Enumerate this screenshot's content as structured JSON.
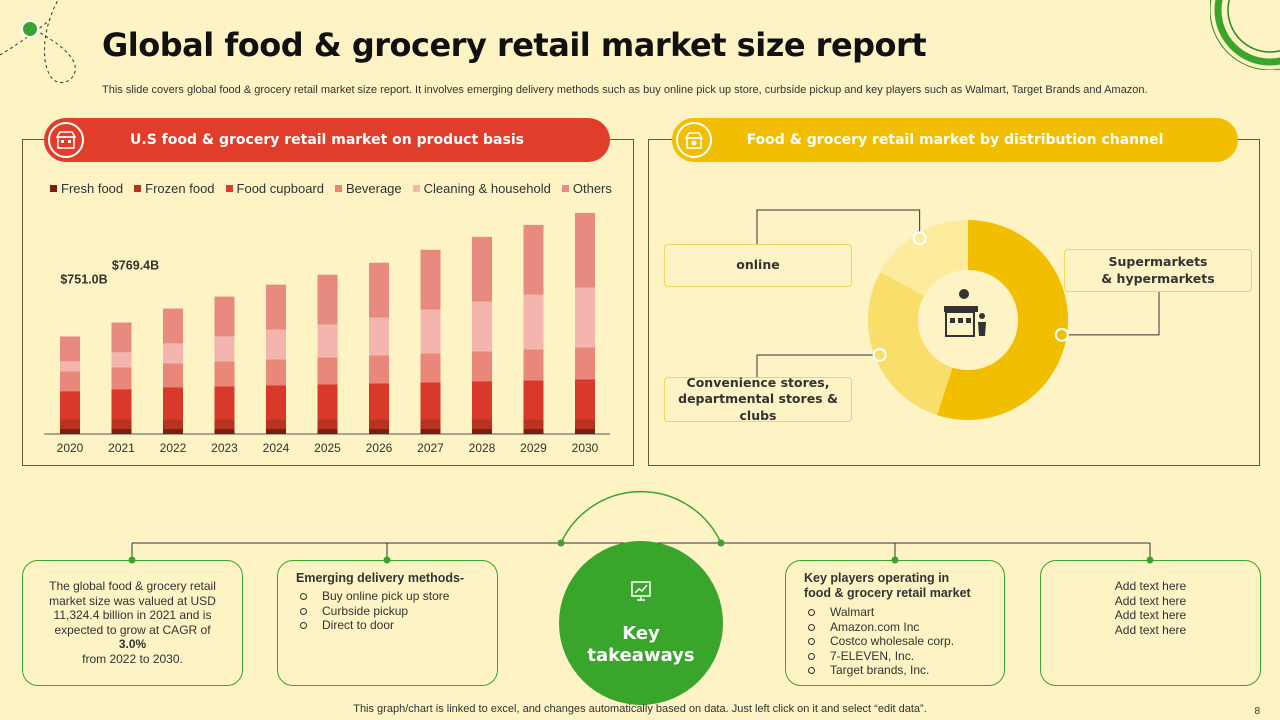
{
  "title": "Global food & grocery retail market size report",
  "subtitle": "This slide covers global food & grocery retail market size report. It involves emerging delivery methods such as buy online pick up store, curbside pickup and key players such as Walmart, Target Brands and Amazon.",
  "left_panel": {
    "header": "U.S food & grocery retail market on product basis"
  },
  "right_panel": {
    "header": "Food & grocery retail market by distribution channel"
  },
  "colors": {
    "red": "#E03E2A",
    "yellow": "#F2BE00",
    "green": "#3AA52B",
    "background": "#FDF3C4"
  },
  "chart_data": [
    {
      "type": "bar",
      "stacked": true,
      "categories": [
        "2020",
        "2021",
        "2022",
        "2023",
        "2024",
        "2025",
        "2026",
        "2027",
        "2028",
        "2029",
        "2030"
      ],
      "series": [
        {
          "name": "Fresh food",
          "color": "#7A1E10",
          "values": [
            5,
            5,
            5,
            5,
            5,
            5,
            5,
            5,
            5,
            5,
            5
          ]
        },
        {
          "name": "Frozen food",
          "color": "#B83220",
          "values": [
            10,
            10,
            10,
            10,
            10,
            10,
            10,
            10,
            10,
            10,
            10
          ]
        },
        {
          "name": "Food cupboard",
          "color": "#D9392A",
          "values": [
            28,
            30,
            32,
            33,
            34,
            35,
            36,
            37,
            38,
            39,
            40
          ]
        },
        {
          "name": "Beverage",
          "color": "#E9877A",
          "values": [
            20,
            22,
            24,
            25,
            26,
            27,
            28,
            29,
            30,
            31,
            32
          ]
        },
        {
          "name": "Cleaning & household",
          "color": "#F4B5AE",
          "values": [
            10,
            15,
            20,
            25,
            30,
            33,
            38,
            44,
            50,
            55,
            60
          ]
        },
        {
          "name": "Others",
          "color": "#E98A80",
          "values": [
            25,
            30,
            35,
            40,
            45,
            50,
            55,
            60,
            65,
            70,
            75
          ]
        }
      ],
      "annotations": [
        {
          "label": "$751.0B",
          "category": "2020"
        },
        {
          "label": "$769.4B",
          "category": "2021"
        }
      ],
      "legend": "top",
      "grid": false,
      "ylim": [
        0,
        230
      ]
    },
    {
      "type": "pie",
      "donut": true,
      "categories": [
        "Supermarkets & hypermarkets",
        "Convenience stores, departmental stores & clubs",
        "online"
      ],
      "display_labels": [
        [
          "Supermarkets",
          "& hypermarkets"
        ],
        [
          "Convenience stores,",
          "departmental stores & clubs"
        ],
        [
          "online"
        ]
      ],
      "values": [
        55,
        28,
        17
      ],
      "colors": [
        "#F2BE00",
        "#FADE6B",
        "#FDEB9E"
      ]
    }
  ],
  "takeaways": {
    "center_label": [
      "Key",
      "takeaways"
    ],
    "box1": {
      "lines": [
        "The global food & grocery retail",
        "market size was valued at USD",
        "11,324.4 billion in 2021 and is",
        "expected to grow at CAGR of "
      ],
      "cagr": "3.0%",
      "last": "from 2022 to 2030."
    },
    "box2": {
      "heading": "Emerging delivery methods-",
      "items": [
        "Buy online pick up store",
        "Curbside pickup",
        "Direct to door"
      ]
    },
    "box3": {
      "heading_lines": [
        "Key players operating in",
        "food & grocery retail market"
      ],
      "items": [
        "Walmart",
        "Amazon.com Inc",
        "Costco wholesale corp.",
        "7-ELEVEN, Inc.",
        "Target brands, Inc."
      ]
    },
    "box4": {
      "lines": [
        "Add text here",
        "Add text here",
        "Add text here",
        "Add text here"
      ]
    }
  },
  "footer": "This graph/chart is linked to excel, and changes automatically based on data. Just left click on it and select “edit data”.",
  "page_number": "8"
}
